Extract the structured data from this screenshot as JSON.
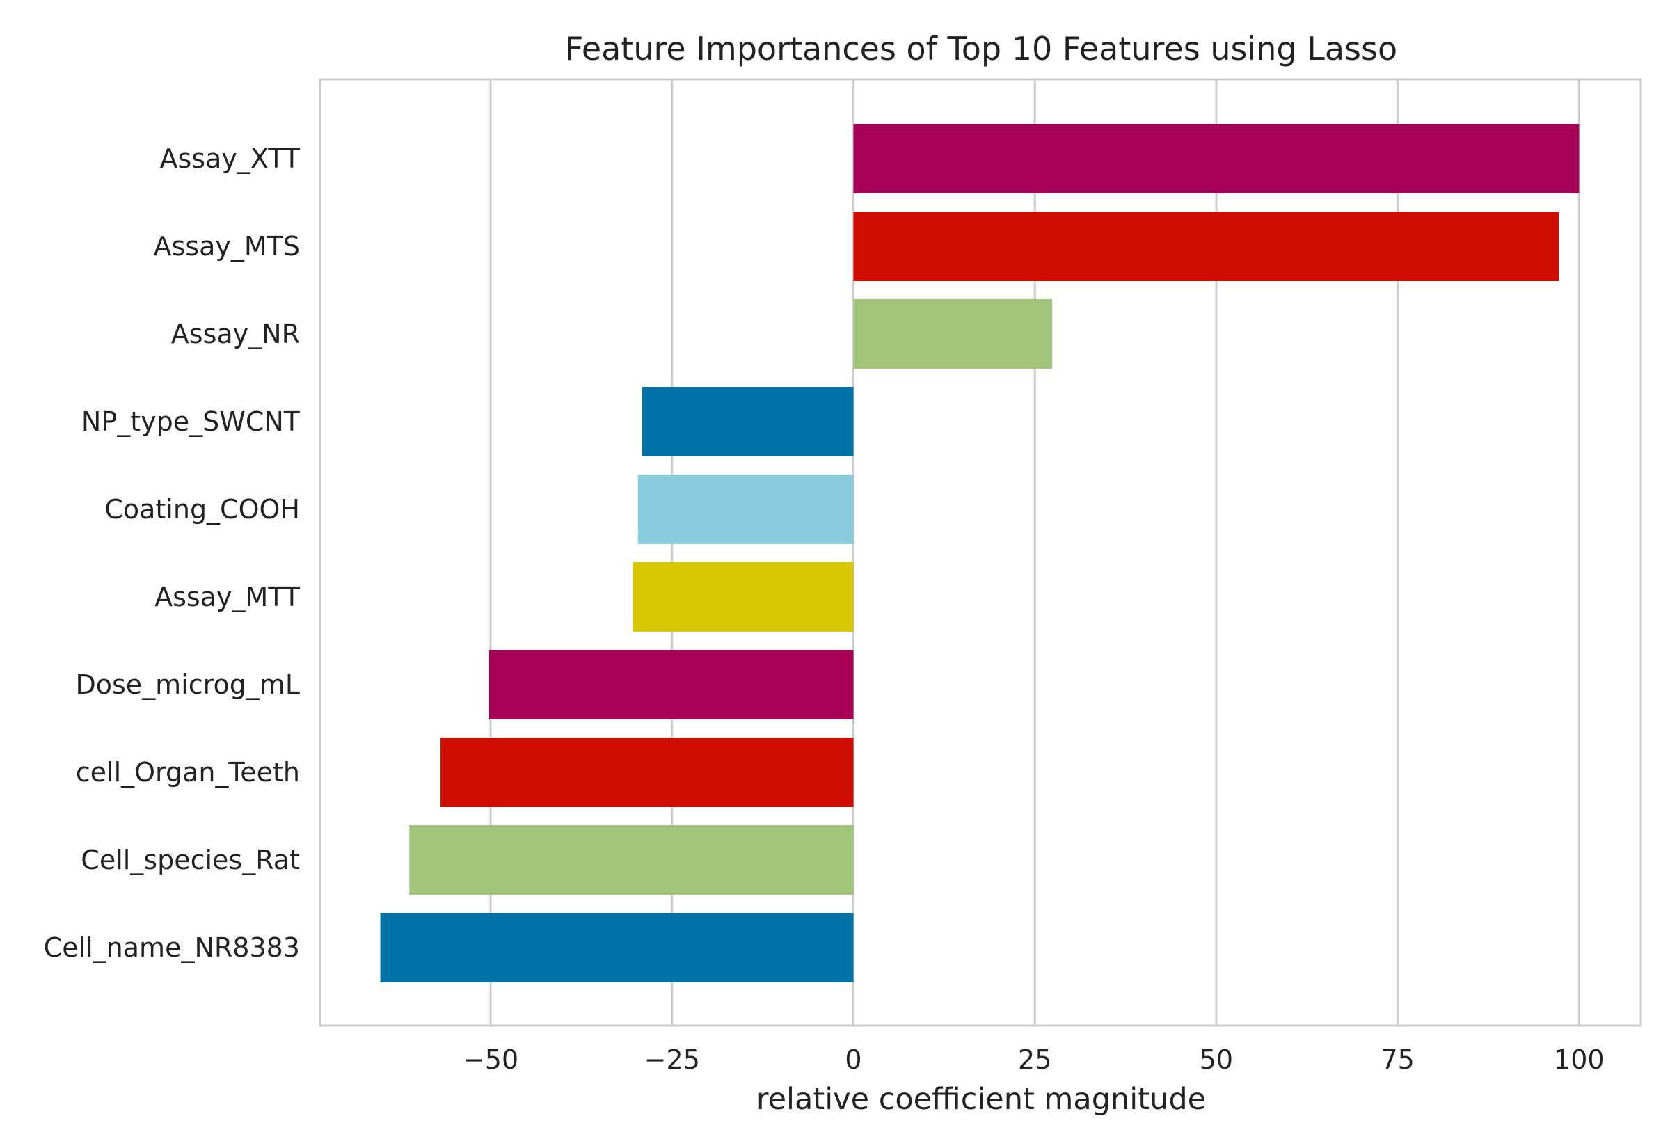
{
  "chart_data": {
    "type": "bar",
    "orientation": "horizontal",
    "title": "Feature Importances of Top 10 Features using Lasso",
    "xlabel": "relative coefficient magnitude",
    "ylabel": "",
    "xlim": [
      -73.5,
      108.5
    ],
    "xticks": [
      -50,
      -25,
      0,
      25,
      50,
      75,
      100
    ],
    "xtick_labels": [
      "−50",
      "−25",
      "0",
      "25",
      "50",
      "75",
      "100"
    ],
    "grid": true,
    "categories": [
      "Assay_XTT",
      "Assay_MTS",
      "Assay_NR",
      "NP_type_SWCNT",
      "Coating_COOH",
      "Assay_MTT",
      "Dose_microg_mL",
      "cell_Organ_Teeth",
      "Cell_species_Rat",
      "Cell_name_NR8383"
    ],
    "values": [
      100,
      97.2,
      27.4,
      -29.1,
      -29.7,
      -30.4,
      -50.2,
      -56.9,
      -61.2,
      -65.2
    ],
    "colors": [
      "#a50055",
      "#cc0d00",
      "#9fc47a",
      "#0072a6",
      "#8acbdb",
      "#d7c800",
      "#a50055",
      "#cc0d00",
      "#9fc47a",
      "#0072a6"
    ]
  }
}
